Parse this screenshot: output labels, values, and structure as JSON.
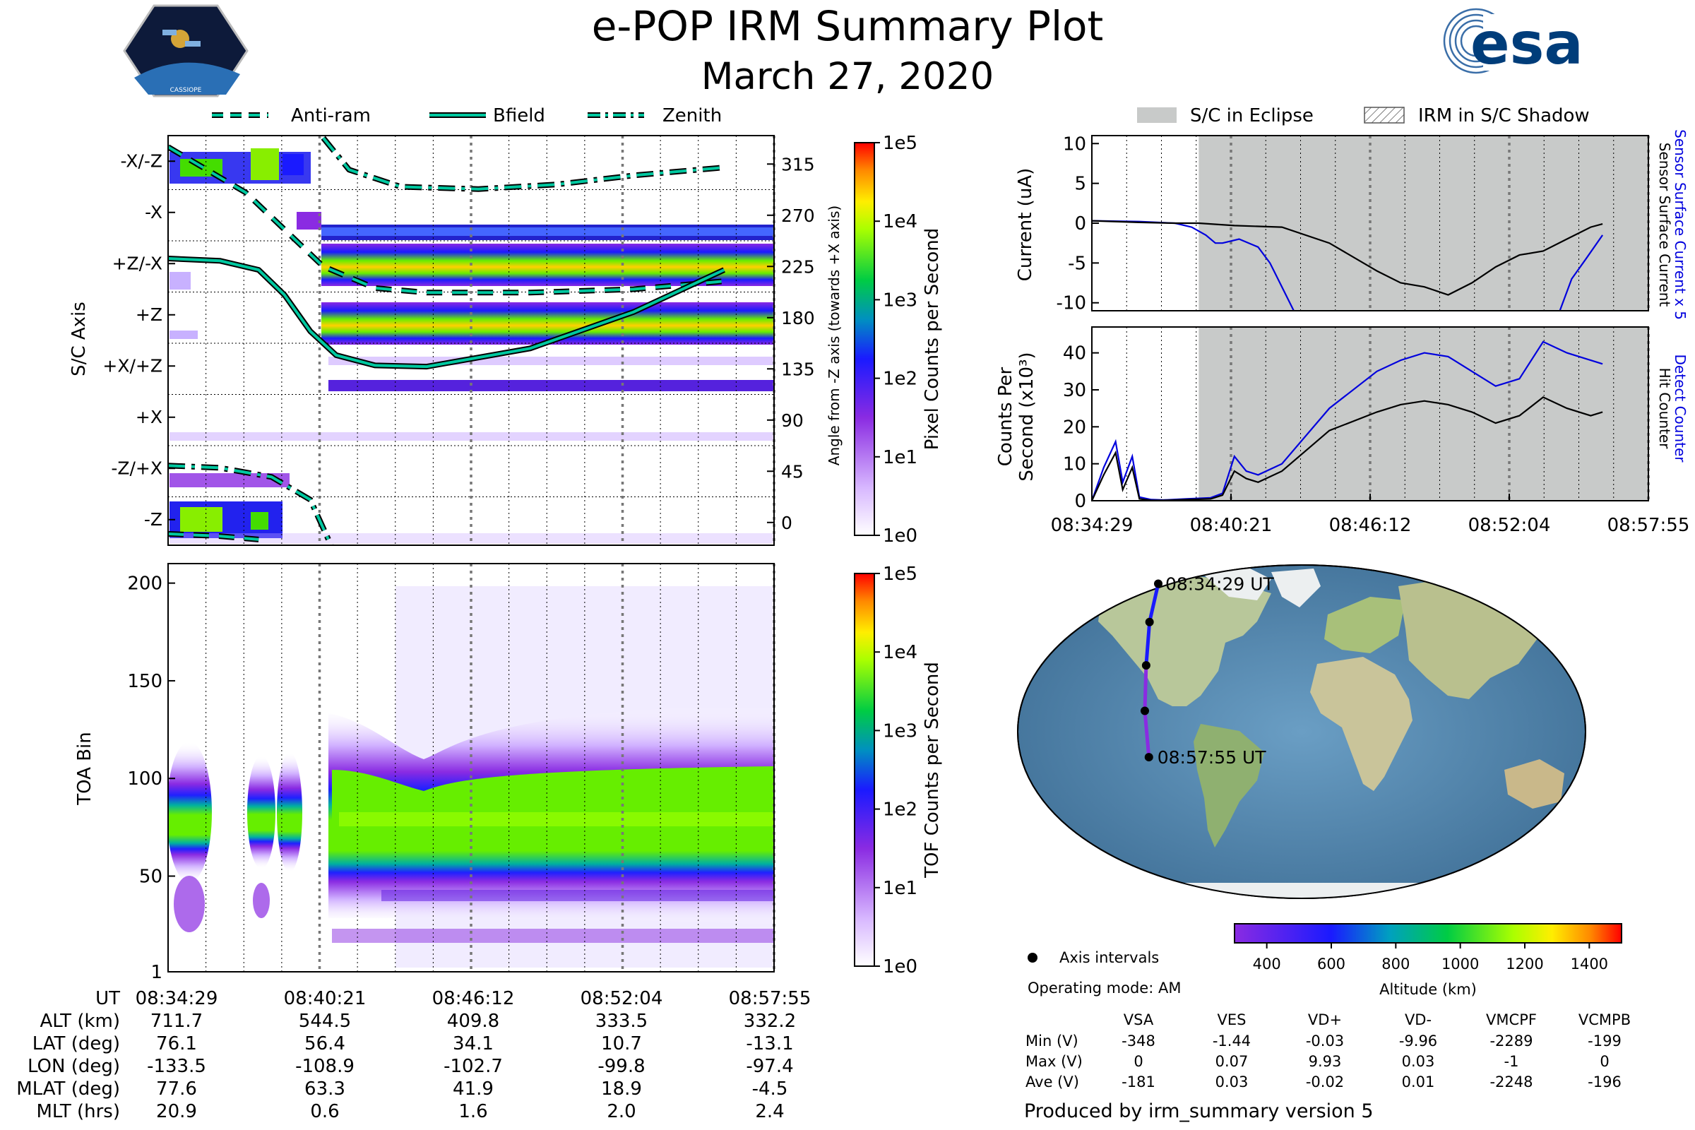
{
  "title": {
    "main": "e-POP IRM Summary Plot",
    "date": "March 27, 2020"
  },
  "logos": {
    "left_text": "CASSIOPE",
    "right_text": "esa"
  },
  "colors": {
    "orbit_line": "#00c8a0",
    "blue": "#0000dd",
    "gray_shade": "#c8cac9",
    "black": "#000000"
  },
  "top_legend": {
    "items": [
      {
        "label": "Anti-ram",
        "style": "dashed"
      },
      {
        "label": "Bfield",
        "style": "solid"
      },
      {
        "label": "Zenith",
        "style": "dashdot"
      }
    ]
  },
  "right_legend": {
    "items": [
      {
        "label": "S/C in Eclipse",
        "style": "gray-fill"
      },
      {
        "label": "IRM in S/C Shadow",
        "style": "hatch"
      }
    ]
  },
  "time_ticks": [
    "08:34:29",
    "08:40:21",
    "08:46:12",
    "08:52:04",
    "08:57:55"
  ],
  "chart_data": [
    {
      "type": "heatmap",
      "name": "pixel-spectrogram",
      "ylabel": "S/C Axis",
      "y_categories": [
        "-X/-Z",
        "-X",
        "+Z/-X",
        "+Z",
        "+X/+Z",
        "+X",
        "-Z/+X",
        "-Z"
      ],
      "y2label": "Angle from -Z axis (towards +X axis)",
      "y2_ticks": [
        315,
        270,
        225,
        180,
        135,
        90,
        45,
        0
      ],
      "y2lim": [
        -20,
        340
      ],
      "colorbar": {
        "label": "Pixel Counts per Second",
        "ticks": [
          "1e5",
          "1e4",
          "1e3",
          "1e2",
          "1e1",
          "1e0"
        ],
        "scale": "log"
      },
      "series": [
        {
          "name": "Anti-ram",
          "style": "dashed",
          "x_min": [
            0,
            3,
            6,
            8,
            10,
            14,
            18,
            21.5
          ],
          "angle": [
            330,
            290,
            225,
            206,
            202,
            202,
            205,
            212
          ]
        },
        {
          "name": "Bfield",
          "style": "solid",
          "x_min": [
            0,
            2,
            3.5,
            4.5,
            5.5,
            6.5,
            8,
            10,
            14,
            18,
            21.5
          ],
          "angle": [
            232,
            230,
            222,
            200,
            168,
            147,
            138,
            137,
            153,
            185,
            222
          ]
        },
        {
          "name": "Zenith",
          "style": "dashdot",
          "x_min": [
            6,
            7,
            9,
            12,
            15,
            18,
            21.5
          ],
          "angle": [
            338,
            310,
            295,
            293,
            297,
            305,
            312
          ]
        }
      ]
    },
    {
      "type": "heatmap",
      "name": "toa-spectrogram",
      "ylabel": "TOA Bin",
      "ylim": [
        1,
        210
      ],
      "y_ticks": [
        1,
        50,
        100,
        150,
        200
      ],
      "colorbar": {
        "label": "TOF Counts per Second",
        "ticks": [
          "1e5",
          "1e4",
          "1e3",
          "1e2",
          "1e1",
          "1e0"
        ],
        "scale": "log"
      },
      "band_center": 75
    },
    {
      "type": "line",
      "name": "current",
      "ylabel": "Current (uA)",
      "ylim": [
        -11,
        11
      ],
      "y_ticks": [
        10,
        5,
        0,
        -5,
        -10
      ],
      "y2label": [
        "Sensor Surface Current x 5",
        "Sensor Surface Current"
      ],
      "eclipse_start_min": 4.5,
      "series": [
        {
          "name": "Sensor Surface Current x 5",
          "color": "#0000dd",
          "x_min": [
            0,
            2,
            3.5,
            4.2,
            4.8,
            5.2,
            5.5,
            6.2,
            7,
            7.5,
            8,
            8.5
          ],
          "y": [
            0.3,
            0.2,
            0,
            -0.5,
            -1.5,
            -2.5,
            -2.5,
            -2.0,
            -3,
            -5,
            -8,
            -11
          ]
        },
        {
          "name": "Sensor Surface Current x 5 (late)",
          "color": "#0000dd",
          "x_min": [
            19.7,
            20.2,
            20.8,
            21.5
          ],
          "y": [
            -11,
            -7,
            -4.5,
            -1.5
          ]
        },
        {
          "name": "Sensor Surface Current",
          "color": "#000000",
          "x_min": [
            0,
            2,
            3.5,
            4.5,
            6,
            8,
            10,
            12,
            13,
            14,
            15,
            16,
            17,
            18,
            19,
            20,
            21,
            21.5
          ],
          "y": [
            0.3,
            0.1,
            0,
            0,
            -0.3,
            -0.5,
            -2.5,
            -6,
            -7.5,
            -8,
            -9,
            -7.5,
            -5.5,
            -4,
            -3.5,
            -2,
            -0.5,
            -0.1
          ]
        }
      ]
    },
    {
      "type": "line",
      "name": "counts",
      "ylabel": [
        "Counts Per",
        "Second (x10³)"
      ],
      "ylim": [
        0,
        47
      ],
      "y_ticks": [
        40,
        30,
        20,
        10,
        0
      ],
      "y2label": [
        "Detect Counter",
        "Hit Counter"
      ],
      "eclipse_start_min": 4.5,
      "series": [
        {
          "name": "Detect Counter",
          "color": "#0000dd",
          "x_min": [
            0,
            0.5,
            1,
            1.3,
            1.7,
            2,
            2.5,
            3,
            4,
            5,
            5.5,
            6,
            6.5,
            7,
            8,
            10,
            12,
            13,
            14,
            15,
            16,
            17,
            18,
            19,
            20,
            21,
            21.5
          ],
          "y": [
            0,
            9,
            16,
            5,
            12,
            1,
            0.3,
            0.2,
            0.5,
            0.8,
            2,
            12,
            8,
            7,
            10,
            25,
            35,
            38,
            40,
            39,
            35,
            31,
            33,
            43,
            40,
            38,
            37
          ]
        },
        {
          "name": "Hit Counter",
          "color": "#000000",
          "x_min": [
            0,
            0.5,
            1,
            1.3,
            1.7,
            2,
            2.5,
            3,
            4,
            5,
            5.5,
            6,
            6.5,
            7,
            8,
            10,
            12,
            13,
            14,
            15,
            16,
            17,
            18,
            19,
            20,
            21,
            21.5
          ],
          "y": [
            0,
            7,
            13,
            3,
            9,
            0.5,
            0.1,
            0.1,
            0.3,
            0.5,
            1.5,
            8,
            6,
            5,
            8,
            19,
            24,
            26,
            27,
            26,
            24,
            21,
            23,
            28,
            25,
            23,
            24
          ]
        }
      ]
    }
  ],
  "map": {
    "start_label": "08:34:29 UT",
    "end_label": "08:57:55 UT",
    "track_lon": [
      -133.5,
      -108.9,
      -102.7,
      -99.8,
      -97.4
    ],
    "track_lat": [
      76.1,
      56.4,
      34.1,
      10.7,
      -13.1
    ],
    "legend_label": "Axis intervals",
    "mode_label": "Operating mode: AM",
    "colorbar": {
      "label": "Altitude (km)",
      "ticks": [
        400,
        600,
        800,
        1000,
        1200,
        1400
      ],
      "range": [
        300,
        1500
      ]
    }
  },
  "position_table": {
    "row_labels": [
      "UT",
      "ALT (km)",
      "LAT (deg)",
      "LON (deg)",
      "MLAT (deg)",
      "MLT (hrs)"
    ],
    "columns": [
      [
        "08:34:29",
        "711.7",
        "76.1",
        "-133.5",
        "77.6",
        "20.9"
      ],
      [
        "08:40:21",
        "544.5",
        "56.4",
        "-108.9",
        "63.3",
        "0.6"
      ],
      [
        "08:46:12",
        "409.8",
        "34.1",
        "-102.7",
        "41.9",
        "1.6"
      ],
      [
        "08:52:04",
        "333.5",
        "10.7",
        "-99.8",
        "18.9",
        "2.0"
      ],
      [
        "08:57:55",
        "332.2",
        "-13.1",
        "-97.4",
        "-4.5",
        "2.4"
      ]
    ]
  },
  "voltage_table": {
    "headers": [
      "VSA",
      "VES",
      "VD+",
      "VD-",
      "VMCPF",
      "VCMPB"
    ],
    "rows": [
      {
        "label": "Min (V)",
        "values": [
          "-348",
          "-1.44",
          "-0.03",
          "-9.96",
          "-2289",
          "-199"
        ]
      },
      {
        "label": "Max (V)",
        "values": [
          "0",
          "0.07",
          "9.93",
          "0.03",
          "-1",
          "0"
        ]
      },
      {
        "label": "Ave (V)",
        "values": [
          "-181",
          "0.03",
          "-0.02",
          "0.01",
          "-2248",
          "-196"
        ]
      }
    ]
  },
  "footer": "Produced by irm_summary version 5"
}
